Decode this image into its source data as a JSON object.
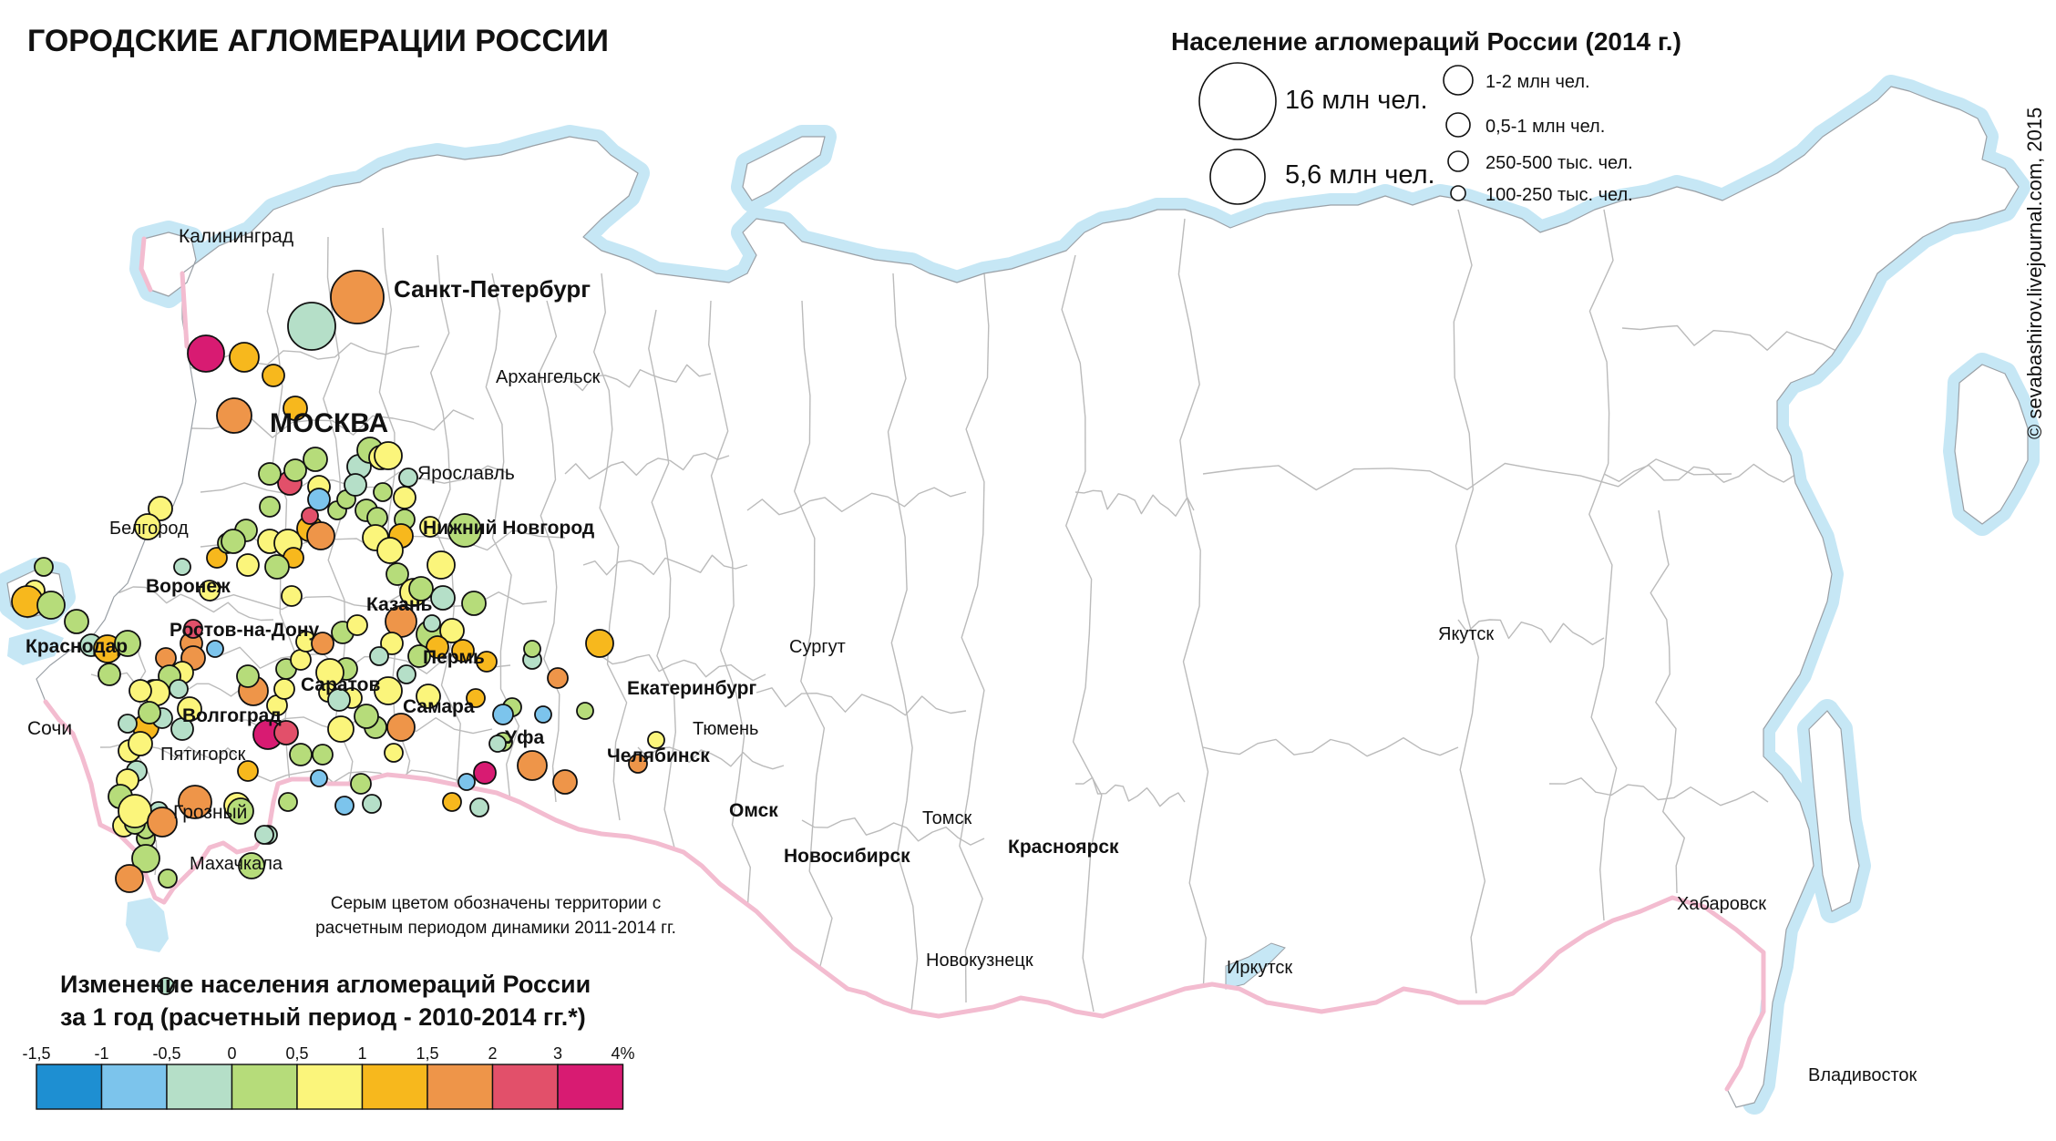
{
  "title": "ГОРОДСКИЕ АГЛОМЕРАЦИИ РОССИИ",
  "copyright": "© sevabashirov.livejournal.com, 2015",
  "note": [
    "Серым цветом обозначены территории с",
    "расчетным периодом динамики 2011-2014 гг."
  ],
  "size_legend": {
    "title": "Население агломераций России (2014 г.)",
    "items": [
      {
        "label": "16 млн чел."
      },
      {
        "label": "5,6 млн чел."
      },
      {
        "label": "1-2 млн чел."
      },
      {
        "label": "0,5-1 млн чел."
      },
      {
        "label": "250-500 тыс. чел."
      },
      {
        "label": "100-250 тыс. чел."
      }
    ]
  },
  "color_legend": {
    "title_line1": "Изменение населения агломераций России",
    "title_line2": "за 1 год (расчетный период - 2010-2014 гг.*)",
    "ticks": [
      "-1,5",
      "-1",
      "-0,5",
      "0",
      "0,5",
      "1",
      "1,5",
      "2",
      "3",
      "4%"
    ],
    "colors": [
      "#1e8fd2",
      "#7cc4ec",
      "#b5dfc8",
      "#b6dc7a",
      "#fbf57b",
      "#f7b81d",
      "#ee9549",
      "#e2506a",
      "#d81b72"
    ]
  },
  "colors": {
    "sea": "#c6e7f5",
    "border": "#f3bcd0",
    "region_line": "#bbbbbb",
    "land": "#ffffff"
  },
  "labels": [
    {
      "text": "Санкт-Петербург",
      "bold": true
    },
    {
      "text": "МОСКВА",
      "bold": true
    },
    {
      "text": "Калининград",
      "bold": false
    },
    {
      "text": "Архангельск",
      "bold": false
    },
    {
      "text": "Ярославль",
      "bold": false
    },
    {
      "text": "Белгород",
      "bold": false
    },
    {
      "text": "Нижний Новгород",
      "bold": true
    },
    {
      "text": "Воронеж",
      "bold": true
    },
    {
      "text": "Казань",
      "bold": true
    },
    {
      "text": "Ростов-на-Дону",
      "bold": true
    },
    {
      "text": "Краснодар",
      "bold": true
    },
    {
      "text": "Пермь",
      "bold": true
    },
    {
      "text": "Саратов",
      "bold": true
    },
    {
      "text": "Екатеринбург",
      "bold": true
    },
    {
      "text": "Сургут",
      "bold": false
    },
    {
      "text": "Самара",
      "bold": true
    },
    {
      "text": "Волгоград",
      "bold": true
    },
    {
      "text": "Сочи",
      "bold": false
    },
    {
      "text": "Уфа",
      "bold": true
    },
    {
      "text": "Тюмень",
      "bold": false
    },
    {
      "text": "Пятигорск",
      "bold": false
    },
    {
      "text": "Челябинск",
      "bold": true
    },
    {
      "text": "Омск",
      "bold": true
    },
    {
      "text": "Грозный",
      "bold": false
    },
    {
      "text": "Томск",
      "bold": false
    },
    {
      "text": "Красноярск",
      "bold": true
    },
    {
      "text": "Новосибирск",
      "bold": true
    },
    {
      "text": "Махачкала",
      "bold": false
    },
    {
      "text": "Новокузнецк",
      "bold": false
    },
    {
      "text": "Якутск",
      "bold": false
    },
    {
      "text": "Хабаровск",
      "bold": false
    },
    {
      "text": "Иркутск",
      "bold": false
    },
    {
      "text": "Владивосток",
      "bold": false
    }
  ],
  "cities": [
    {
      "c": 2,
      "r": 26
    },
    {
      "c": 6,
      "r": 29
    },
    {
      "c": 6,
      "r": 19
    },
    {
      "c": 5,
      "r": 13
    },
    {
      "c": 5,
      "r": 12
    },
    {
      "c": 8,
      "r": 20
    },
    {
      "c": 5,
      "r": 16
    },
    {
      "c": 7,
      "r": 13
    },
    {
      "c": 4,
      "r": 13
    },
    {
      "c": 4,
      "r": 14
    },
    {
      "c": 3,
      "r": 10
    },
    {
      "c": 4,
      "r": 11
    },
    {
      "c": 5,
      "r": 17
    },
    {
      "c": 3,
      "r": 15
    },
    {
      "c": 3,
      "r": 13
    },
    {
      "c": 2,
      "r": 12
    },
    {
      "c": 5,
      "r": 15
    },
    {
      "c": 3,
      "r": 14
    },
    {
      "c": 3,
      "r": 12
    },
    {
      "c": 4,
      "r": 10
    },
    {
      "c": 6,
      "r": 11
    },
    {
      "c": 6,
      "r": 12
    },
    {
      "c": 5,
      "r": 11
    },
    {
      "c": 4,
      "r": 11
    },
    {
      "c": 3,
      "r": 11
    },
    {
      "c": 3,
      "r": 12
    },
    {
      "c": 1,
      "r": 9
    },
    {
      "c": 2,
      "r": 9
    },
    {
      "c": 3,
      "r": 11
    },
    {
      "c": 4,
      "r": 13
    },
    {
      "c": 3,
      "r": 13
    },
    {
      "c": 4,
      "r": 12
    },
    {
      "c": 4,
      "r": 15
    },
    {
      "c": 5,
      "r": 14
    },
    {
      "c": 5,
      "r": 11
    },
    {
      "c": 6,
      "r": 15
    },
    {
      "c": 4,
      "r": 11
    },
    {
      "c": 7,
      "r": 9
    },
    {
      "c": 3,
      "r": 10
    },
    {
      "c": 4,
      "r": 12
    },
    {
      "c": 3,
      "r": 12
    },
    {
      "c": 3,
      "r": 12
    },
    {
      "c": 3,
      "r": 13
    },
    {
      "c": 1,
      "r": 12
    },
    {
      "c": 3,
      "r": 10
    },
    {
      "c": 2,
      "r": 13
    },
    {
      "c": 3,
      "r": 14
    },
    {
      "c": 4,
      "r": 13
    },
    {
      "c": 4,
      "r": 15
    },
    {
      "c": 3,
      "r": 10
    },
    {
      "c": 3,
      "r": 12
    },
    {
      "c": 2,
      "r": 12
    },
    {
      "c": 4,
      "r": 12
    },
    {
      "c": 2,
      "r": 10
    },
    {
      "c": 3,
      "r": 11
    },
    {
      "c": 3,
      "r": 11
    },
    {
      "c": 4,
      "r": 14
    },
    {
      "c": 5,
      "r": 13
    },
    {
      "c": 4,
      "r": 14
    },
    {
      "c": 4,
      "r": 11
    },
    {
      "c": 3,
      "r": 12
    },
    {
      "c": 4,
      "r": 15
    },
    {
      "c": 6,
      "r": 17
    },
    {
      "c": 4,
      "r": 12
    },
    {
      "c": 3,
      "r": 15
    },
    {
      "c": 3,
      "r": 13
    },
    {
      "c": 4,
      "r": 15
    },
    {
      "c": 2,
      "r": 13
    },
    {
      "c": 3,
      "r": 18
    },
    {
      "c": 3,
      "r": 13
    },
    {
      "c": 4,
      "r": 13
    },
    {
      "c": 5,
      "r": 12
    },
    {
      "c": 2,
      "r": 9
    },
    {
      "c": 3,
      "r": 12
    },
    {
      "c": 2,
      "r": 10
    },
    {
      "c": 4,
      "r": 13
    },
    {
      "c": 3,
      "r": 12
    },
    {
      "c": 4,
      "r": 11
    },
    {
      "c": 3,
      "r": 13
    },
    {
      "c": 4,
      "r": 15
    },
    {
      "c": 2,
      "r": 10
    },
    {
      "c": 3,
      "r": 12
    },
    {
      "c": 3,
      "r": 12
    },
    {
      "c": 4,
      "r": 11
    },
    {
      "c": 3,
      "r": 13
    },
    {
      "c": 6,
      "r": 16
    },
    {
      "c": 3,
      "r": 12
    },
    {
      "c": 4,
      "r": 11
    },
    {
      "c": 4,
      "r": 11
    },
    {
      "c": 3,
      "r": 11
    },
    {
      "c": 4,
      "r": 11
    },
    {
      "c": 4,
      "r": 11
    },
    {
      "c": 6,
      "r": 12
    },
    {
      "c": 4,
      "r": 15
    },
    {
      "c": 4,
      "r": 10
    },
    {
      "c": 2,
      "r": 12
    },
    {
      "c": 4,
      "r": 14
    },
    {
      "c": 3,
      "r": 11
    },
    {
      "c": 3,
      "r": 12
    },
    {
      "c": 8,
      "r": 16
    },
    {
      "c": 7,
      "r": 13
    },
    {
      "c": 1,
      "r": 9
    },
    {
      "c": 1,
      "r": 10
    },
    {
      "c": 3,
      "r": 11
    },
    {
      "c": 2,
      "r": 10
    },
    {
      "c": 3,
      "r": 10
    },
    {
      "c": 6,
      "r": 13
    },
    {
      "c": 4,
      "r": 12
    },
    {
      "c": 3,
      "r": 12
    },
    {
      "c": 2,
      "r": 10
    },
    {
      "c": 5,
      "r": 14
    },
    {
      "c": 2,
      "r": 11
    },
    {
      "c": 2,
      "r": 12
    },
    {
      "c": 4,
      "r": 14
    },
    {
      "c": 3,
      "r": 12
    },
    {
      "c": 4,
      "r": 13
    },
    {
      "c": 7,
      "r": 10
    },
    {
      "c": 4,
      "r": 12
    },
    {
      "c": 2,
      "r": 10
    },
    {
      "c": 4,
      "r": 12
    },
    {
      "c": 4,
      "r": 13
    },
    {
      "c": 2,
      "r": 11
    },
    {
      "c": 4,
      "r": 12
    },
    {
      "c": 3,
      "r": 13
    },
    {
      "c": 4,
      "r": 13
    },
    {
      "c": 4,
      "r": 12
    },
    {
      "c": 2,
      "r": 9
    },
    {
      "c": 5,
      "r": 13
    },
    {
      "c": 3,
      "r": 10
    },
    {
      "c": 3,
      "r": 15
    },
    {
      "c": 3,
      "r": 10
    },
    {
      "c": 2,
      "r": 10
    },
    {
      "c": 3,
      "r": 10
    },
    {
      "c": 3,
      "r": 11
    },
    {
      "c": 4,
      "r": 18
    },
    {
      "c": 6,
      "r": 15
    },
    {
      "c": 6,
      "r": 16
    },
    {
      "c": 6,
      "r": 18
    },
    {
      "c": 4,
      "r": 14
    },
    {
      "c": 3,
      "r": 14
    },
    {
      "c": 2,
      "r": 10
    },
    {
      "c": 2,
      "r": 9
    },
    {
      "c": 2,
      "r": 10
    },
    {
      "c": 3,
      "r": 14
    },
    {
      "c": 5,
      "r": 11
    },
    {
      "c": 4,
      "r": 10
    },
    {
      "c": 6,
      "r": 15
    },
    {
      "c": 5,
      "r": 10
    },
    {
      "c": 1,
      "r": 9
    },
    {
      "c": 8,
      "r": 12
    },
    {
      "c": 2,
      "r": 10
    },
    {
      "c": 3,
      "r": 10
    },
    {
      "c": 3,
      "r": 10
    },
    {
      "c": 6,
      "r": 16
    },
    {
      "c": 1,
      "r": 9
    },
    {
      "c": 2,
      "r": 9
    },
    {
      "c": 5,
      "r": 12
    },
    {
      "c": 5,
      "r": 10
    },
    {
      "c": 5,
      "r": 11
    },
    {
      "c": 6,
      "r": 11
    },
    {
      "c": 1,
      "r": 11
    },
    {
      "c": 2,
      "r": 10
    },
    {
      "c": 3,
      "r": 9
    },
    {
      "c": 6,
      "r": 13
    },
    {
      "c": 5,
      "r": 15
    },
    {
      "c": 6,
      "r": 10
    },
    {
      "c": 4,
      "r": 9
    },
    {
      "c": 3,
      "r": 9
    }
  ]
}
